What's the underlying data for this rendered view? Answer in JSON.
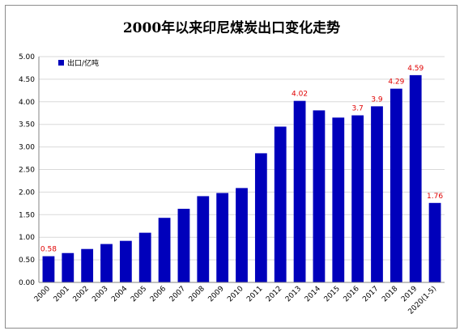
{
  "chart_data": {
    "type": "bar",
    "title": "2000年以来印尼煤炭出口变化走势",
    "xlabel": "",
    "ylabel": "",
    "categories": [
      "2000",
      "2001",
      "2002",
      "2003",
      "2004",
      "2005",
      "2006",
      "2007",
      "2008",
      "2009",
      "2010",
      "2011",
      "2012",
      "2013",
      "2014",
      "2015",
      "2016",
      "2017",
      "2018",
      "2019",
      "2020(1-5)"
    ],
    "series": [
      {
        "name": "出口/亿吨",
        "color": "#0000bb",
        "values": [
          0.58,
          0.65,
          0.74,
          0.85,
          0.92,
          1.1,
          1.43,
          1.63,
          1.91,
          1.98,
          2.09,
          2.86,
          3.45,
          4.02,
          3.81,
          3.65,
          3.7,
          3.9,
          4.29,
          4.59,
          1.76
        ]
      }
    ],
    "data_labels": [
      {
        "index": 0,
        "text": "0.58"
      },
      {
        "index": 13,
        "text": "4.02"
      },
      {
        "index": 16,
        "text": "3.7"
      },
      {
        "index": 17,
        "text": "3.9"
      },
      {
        "index": 18,
        "text": "4.29"
      },
      {
        "index": 19,
        "text": "4.59"
      },
      {
        "index": 20,
        "text": "1.76"
      }
    ],
    "data_label_color": "#e00000",
    "yticks": [
      "0.00",
      "0.50",
      "1.00",
      "1.50",
      "2.00",
      "2.50",
      "3.00",
      "3.50",
      "4.00",
      "4.50",
      "5.00"
    ],
    "ylim": [
      0,
      5
    ],
    "grid": true,
    "legend_position": "top-left"
  }
}
